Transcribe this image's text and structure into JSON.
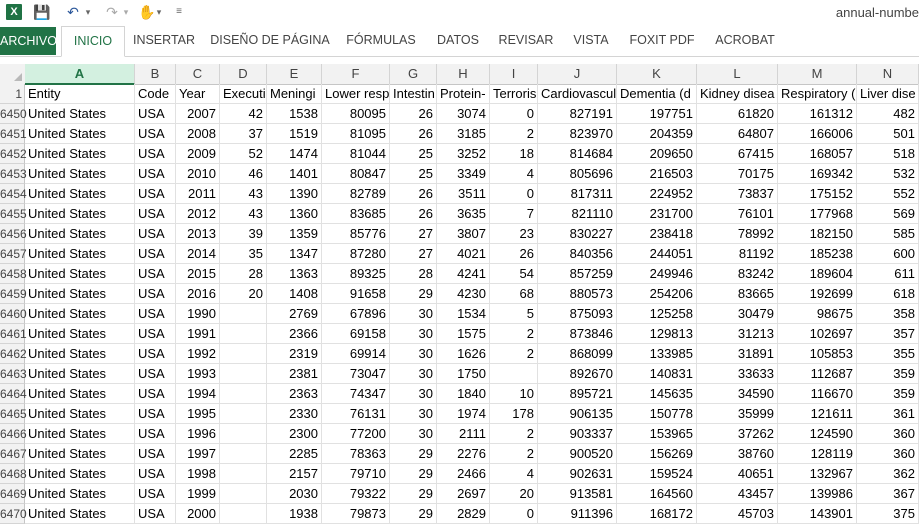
{
  "titlebar": {
    "excel_icon": "X",
    "save_icon": "save-icon",
    "undo_icon": "undo-icon",
    "redo_icon": "redo-icon",
    "touch_icon": "touch-mode-icon",
    "doc_title": "annual-numbe"
  },
  "ribbon": {
    "tabs": [
      "ARCHIVO",
      "INICIO",
      "INSERTAR",
      "DISEÑO DE PÁGINA",
      "FÓRMULAS",
      "DATOS",
      "REVISAR",
      "VISTA",
      "FOXIT PDF",
      "ACROBAT"
    ],
    "active": "INICIO",
    "archivo_color": "#217346"
  },
  "sheet": {
    "columns": [
      "A",
      "B",
      "C",
      "D",
      "E",
      "F",
      "G",
      "H",
      "I",
      "J",
      "K",
      "L",
      "M",
      "N"
    ],
    "selected_column": "A",
    "header_row_number": "1",
    "headers": [
      "Entity",
      "Code",
      "Year",
      "Executi",
      "Meningi",
      "Lower resp",
      "Intestin",
      "Protein-",
      "Terroris",
      "Cardiovascul",
      "Dementia (d",
      "Kidney disea",
      "Respiratory (",
      "Liver dise"
    ],
    "rows": [
      {
        "n": "6450",
        "v": [
          "United States",
          "USA",
          "2007",
          "42",
          "1538",
          "80095",
          "26",
          "3074",
          "0",
          "827191",
          "197751",
          "61820",
          "161312",
          "482"
        ]
      },
      {
        "n": "6451",
        "v": [
          "United States",
          "USA",
          "2008",
          "37",
          "1519",
          "81095",
          "26",
          "3185",
          "2",
          "823970",
          "204359",
          "64807",
          "166006",
          "501"
        ]
      },
      {
        "n": "6452",
        "v": [
          "United States",
          "USA",
          "2009",
          "52",
          "1474",
          "81044",
          "25",
          "3252",
          "18",
          "814684",
          "209650",
          "67415",
          "168057",
          "518"
        ]
      },
      {
        "n": "6453",
        "v": [
          "United States",
          "USA",
          "2010",
          "46",
          "1401",
          "80847",
          "25",
          "3349",
          "4",
          "805696",
          "216503",
          "70175",
          "169342",
          "532"
        ]
      },
      {
        "n": "6454",
        "v": [
          "United States",
          "USA",
          "2011",
          "43",
          "1390",
          "82789",
          "26",
          "3511",
          "0",
          "817311",
          "224952",
          "73837",
          "175152",
          "552"
        ]
      },
      {
        "n": "6455",
        "v": [
          "United States",
          "USA",
          "2012",
          "43",
          "1360",
          "83685",
          "26",
          "3635",
          "7",
          "821110",
          "231700",
          "76101",
          "177968",
          "569"
        ]
      },
      {
        "n": "6456",
        "v": [
          "United States",
          "USA",
          "2013",
          "39",
          "1359",
          "85776",
          "27",
          "3807",
          "23",
          "830227",
          "238418",
          "78992",
          "182150",
          "585"
        ]
      },
      {
        "n": "6457",
        "v": [
          "United States",
          "USA",
          "2014",
          "35",
          "1347",
          "87280",
          "27",
          "4021",
          "26",
          "840356",
          "244051",
          "81192",
          "185238",
          "600"
        ]
      },
      {
        "n": "6458",
        "v": [
          "United States",
          "USA",
          "2015",
          "28",
          "1363",
          "89325",
          "28",
          "4241",
          "54",
          "857259",
          "249946",
          "83242",
          "189604",
          "611"
        ]
      },
      {
        "n": "6459",
        "v": [
          "United States",
          "USA",
          "2016",
          "20",
          "1408",
          "91658",
          "29",
          "4230",
          "68",
          "880573",
          "254206",
          "83665",
          "192699",
          "618"
        ]
      },
      {
        "n": "6460",
        "v": [
          "United States",
          "USA",
          "1990",
          "",
          "2769",
          "67896",
          "30",
          "1534",
          "5",
          "875093",
          "125258",
          "30479",
          "98675",
          "358"
        ]
      },
      {
        "n": "6461",
        "v": [
          "United States",
          "USA",
          "1991",
          "",
          "2366",
          "69158",
          "30",
          "1575",
          "2",
          "873846",
          "129813",
          "31213",
          "102697",
          "357"
        ]
      },
      {
        "n": "6462",
        "v": [
          "United States",
          "USA",
          "1992",
          "",
          "2319",
          "69914",
          "30",
          "1626",
          "2",
          "868099",
          "133985",
          "31891",
          "105853",
          "355"
        ]
      },
      {
        "n": "6463",
        "v": [
          "United States",
          "USA",
          "1993",
          "",
          "2381",
          "73047",
          "30",
          "1750",
          "",
          "892670",
          "140831",
          "33633",
          "112687",
          "359"
        ]
      },
      {
        "n": "6464",
        "v": [
          "United States",
          "USA",
          "1994",
          "",
          "2363",
          "74347",
          "30",
          "1840",
          "10",
          "895721",
          "145635",
          "34590",
          "116670",
          "359"
        ]
      },
      {
        "n": "6465",
        "v": [
          "United States",
          "USA",
          "1995",
          "",
          "2330",
          "76131",
          "30",
          "1974",
          "178",
          "906135",
          "150778",
          "35999",
          "121611",
          "361"
        ]
      },
      {
        "n": "6466",
        "v": [
          "United States",
          "USA",
          "1996",
          "",
          "2300",
          "77200",
          "30",
          "2111",
          "2",
          "903337",
          "153965",
          "37262",
          "124590",
          "360"
        ]
      },
      {
        "n": "6467",
        "v": [
          "United States",
          "USA",
          "1997",
          "",
          "2285",
          "78363",
          "29",
          "2276",
          "2",
          "900520",
          "156269",
          "38760",
          "128119",
          "360"
        ]
      },
      {
        "n": "6468",
        "v": [
          "United States",
          "USA",
          "1998",
          "",
          "2157",
          "79710",
          "29",
          "2466",
          "4",
          "902631",
          "159524",
          "40651",
          "132967",
          "362"
        ]
      },
      {
        "n": "6469",
        "v": [
          "United States",
          "USA",
          "1999",
          "",
          "2030",
          "79322",
          "29",
          "2697",
          "20",
          "913581",
          "164560",
          "43457",
          "139986",
          "367"
        ]
      },
      {
        "n": "6470",
        "v": [
          "United States",
          "USA",
          "2000",
          "",
          "1938",
          "79873",
          "29",
          "2829",
          "0",
          "911396",
          "168172",
          "45703",
          "143901",
          "375"
        ]
      }
    ]
  }
}
